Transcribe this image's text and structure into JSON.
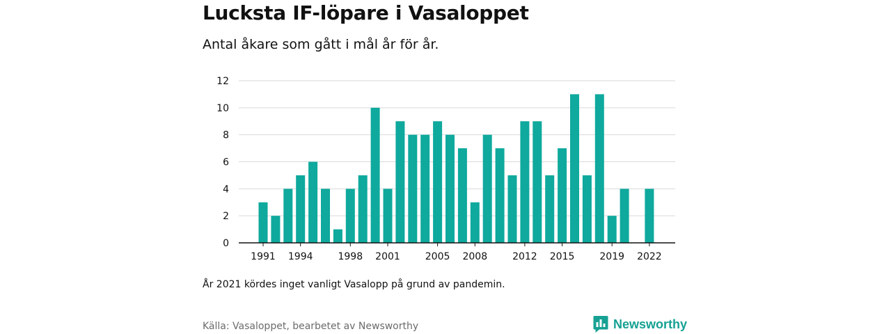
{
  "title": "Lucksta IF-löpare i Vasaloppet",
  "subtitle": "Antal åkare som gått i mål år för år.",
  "note": "År 2021 kördes inget vanligt Vasalopp på grund av pandemin.",
  "source": "Källa: Vasaloppet, bearbetet av Newsworthy",
  "brand": {
    "name": "Newsworthy",
    "icon": "newsworthy-logo-icon",
    "color": "#16a193"
  },
  "colors": {
    "bar": "#0fa99d",
    "grid": "#d9d9d9",
    "axis": "#111111"
  },
  "chart_data": {
    "type": "bar",
    "x": [
      1991,
      1992,
      1993,
      1994,
      1995,
      1996,
      1997,
      1998,
      1999,
      2000,
      2001,
      2002,
      2003,
      2004,
      2005,
      2006,
      2007,
      2008,
      2009,
      2010,
      2011,
      2012,
      2013,
      2014,
      2015,
      2016,
      2017,
      2018,
      2019,
      2020,
      2021,
      2022
    ],
    "values": [
      3,
      2,
      4,
      5,
      6,
      4,
      1,
      4,
      5,
      10,
      4,
      9,
      8,
      8,
      9,
      8,
      7,
      3,
      8,
      7,
      5,
      9,
      9,
      5,
      7,
      11,
      5,
      11,
      2,
      4,
      null,
      4
    ],
    "x_tick_labels": [
      "1991",
      "1994",
      "1998",
      "2001",
      "2005",
      "2008",
      "2012",
      "2015",
      "2019",
      "2022"
    ],
    "y_ticks": [
      0,
      2,
      4,
      6,
      8,
      10,
      12
    ],
    "ylim": [
      0,
      12
    ],
    "xlabel": "",
    "ylabel": "",
    "grid": true
  }
}
